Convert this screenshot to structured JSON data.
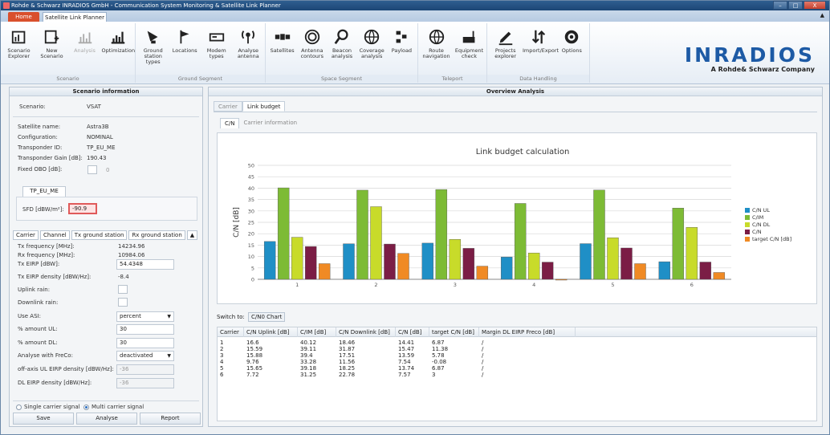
{
  "window": {
    "title": "Rohde & Schwarz INRADIOS GmbH - Communication System Monitoring & Satellite Link Planner",
    "controls": [
      "–",
      "□",
      "X"
    ]
  },
  "app_tabs": {
    "home": "Home",
    "slp": "Satellite Link Planner"
  },
  "ribbon": {
    "groups": [
      {
        "label": "Scenario",
        "items": [
          {
            "label": "Scenario\nExplorer",
            "icon": "scenario-explorer-icon"
          },
          {
            "label": "New\nScenario",
            "icon": "new-scenario-icon"
          },
          {
            "label": "Analysis",
            "icon": "analysis-icon",
            "disabled": true
          },
          {
            "label": "Optimization",
            "icon": "optimization-icon"
          }
        ]
      },
      {
        "label": "Ground Segment",
        "items": [
          {
            "label": "Ground station\ntypes",
            "icon": "ground-station-icon"
          },
          {
            "label": "Locations",
            "icon": "flag-icon"
          },
          {
            "label": "Modem\ntypes",
            "icon": "modem-icon"
          },
          {
            "label": "Analyse\nantenna",
            "icon": "antenna-icon"
          }
        ]
      },
      {
        "label": "Space Segment",
        "items": [
          {
            "label": "Satellites",
            "icon": "satellite-icon"
          },
          {
            "label": "Antenna\ncontours",
            "icon": "antenna-contours-icon"
          },
          {
            "label": "Beacon\nanalysis",
            "icon": "beacon-icon"
          },
          {
            "label": "Coverage\nanalysis",
            "icon": "globe-icon"
          },
          {
            "label": "Payload",
            "icon": "payload-icon"
          }
        ]
      },
      {
        "label": "Teleport",
        "items": [
          {
            "label": "Route\nnavigation",
            "icon": "route-globe-icon"
          },
          {
            "label": "Equipment\ncheck",
            "icon": "equipment-icon"
          }
        ]
      },
      {
        "label": "Data Handling",
        "items": [
          {
            "label": "Projects\nexplorer",
            "icon": "pen-icon"
          },
          {
            "label": "Import/Export",
            "icon": "import-export-icon"
          },
          {
            "label": "Options",
            "icon": "gear-icon"
          }
        ]
      }
    ],
    "logo_main": "INRADIOS",
    "logo_sub": "A Rohde& Schwarz Company"
  },
  "left": {
    "title": "Scenario information",
    "scenario_label": "Scenario:",
    "scenario_value": "VSAT",
    "fields": [
      {
        "label": "Satellite name:",
        "value": "Astra3B"
      },
      {
        "label": "Configuration:",
        "value": "NOMINAL"
      },
      {
        "label": "Transponder ID:",
        "value": "TP_EU_ME"
      },
      {
        "label": "Transponder Gain [dB]:",
        "value": "190.43"
      }
    ],
    "fixed_obo_label": "Fixed OBO [dB]:",
    "fixed_obo_value": "0",
    "tp_tab": "TP_EU_ME",
    "sfd_label": "SFD [dBW/m²]:",
    "sfd_value": "-90.9",
    "subtabs": [
      "Carrier",
      "Channel",
      "Tx ground station",
      "Rx ground station"
    ],
    "carrier_fields": [
      {
        "label": "Tx frequency [MHz]:",
        "value": "14234.96"
      },
      {
        "label": "Rx frequency [MHz]:",
        "value": "10984.06"
      },
      {
        "label": "Tx EIRP [dBW]:",
        "value": "54.4348"
      },
      {
        "label": "Tx EIRP density [dBW/Hz]:",
        "value": "-8.4"
      },
      {
        "label": "Uplink rain:",
        "value": ""
      },
      {
        "label": "Downlink rain:",
        "value": ""
      },
      {
        "label": "Use ASI:",
        "value": "percent"
      },
      {
        "label": "% amount UL:",
        "value": "30"
      },
      {
        "label": "% amount DL:",
        "value": "30"
      },
      {
        "label": "Analyse with FreCo:",
        "value": "deactivated"
      },
      {
        "label": "off-axis UL EIRP density [dBW/Hz]:",
        "value": "-36"
      },
      {
        "label": "DL EIRP density [dBW/Hz]:",
        "value": "-36"
      }
    ],
    "radio_single": "Single carrier signal",
    "radio_multi": "Multi carrier signal",
    "btn_save": "Save",
    "btn_analyse": "Analyse",
    "btn_report": "Report"
  },
  "right": {
    "title": "Overview Analysis",
    "tabs": [
      "Carrier",
      "Link budget"
    ],
    "subtabs": [
      "C/N",
      "Carrier information"
    ],
    "switch_label": "Switch to:",
    "switch_btn": "C/N0 Chart",
    "table_headers": [
      "Carrier",
      "C/N Uplink [dB]",
      "C/IM [dB]",
      "C/N Downlink [dB]",
      "C/N [dB]",
      "target C/N [dB]",
      "Margin DL EIRP Freco [dB]"
    ],
    "table_rows": [
      [
        "1",
        "16.6",
        "40.12",
        "18.46",
        "14.41",
        "6.87",
        "/"
      ],
      [
        "2",
        "15.59",
        "39.11",
        "31.87",
        "15.47",
        "11.38",
        "/"
      ],
      [
        "3",
        "15.88",
        "39.4",
        "17.51",
        "13.59",
        "5.78",
        "/"
      ],
      [
        "4",
        "9.76",
        "33.28",
        "11.56",
        "7.54",
        "-0.08",
        "/"
      ],
      [
        "5",
        "15.65",
        "39.18",
        "18.25",
        "13.74",
        "6.87",
        "/"
      ],
      [
        "6",
        "7.72",
        "31.25",
        "22.78",
        "7.57",
        "3",
        "/"
      ]
    ]
  },
  "chart_data": {
    "type": "bar",
    "title": "Link budget calculation",
    "ylabel": "C/N [dB]",
    "xlabel": "",
    "categories": [
      "1",
      "2",
      "3",
      "4",
      "5",
      "6"
    ],
    "ylim": [
      0,
      50
    ],
    "yticks": [
      "0",
      "5",
      "10",
      "15",
      "20",
      "25",
      "30",
      "35",
      "40",
      "45",
      "50"
    ],
    "grid": true,
    "legend_position": "right",
    "series": [
      {
        "name": "C/N UL",
        "color": "#1f8fc6",
        "values": [
          16.6,
          15.59,
          15.88,
          9.76,
          15.65,
          7.72
        ]
      },
      {
        "name": "C/IM",
        "color": "#7dbb35",
        "values": [
          40.12,
          39.11,
          39.4,
          33.28,
          39.18,
          31.25
        ]
      },
      {
        "name": "C/N DL",
        "color": "#c8db2a",
        "values": [
          18.46,
          31.87,
          17.51,
          11.56,
          18.25,
          22.78
        ]
      },
      {
        "name": "C/N",
        "color": "#7b1d45",
        "values": [
          14.41,
          15.47,
          13.59,
          7.54,
          13.74,
          7.57
        ]
      },
      {
        "name": "target C/N [dB]",
        "color": "#f08a24",
        "values": [
          6.87,
          11.38,
          5.78,
          -0.08,
          6.87,
          3
        ]
      }
    ]
  }
}
